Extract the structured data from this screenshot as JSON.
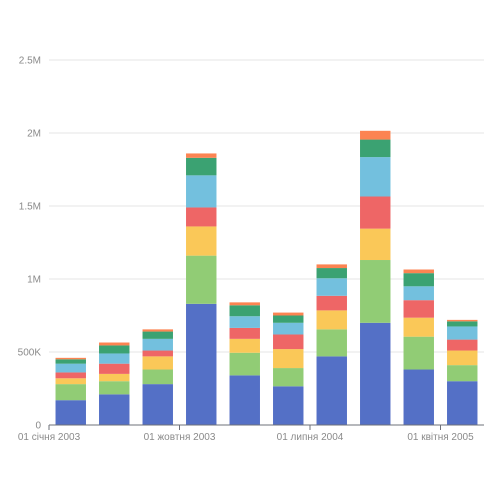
{
  "chart_data": {
    "type": "bar",
    "stacked": true,
    "title": "",
    "xlabel": "",
    "ylabel": "",
    "grid": true,
    "ylim": [
      0,
      2500000
    ],
    "y_ticks": [
      0,
      500000,
      1000000,
      1500000,
      2000000,
      2500000
    ],
    "y_tick_labels": [
      "0",
      "500K",
      "1M",
      "1.5M",
      "2M",
      "2.5M"
    ],
    "x_tick_labels": [
      {
        "label": "01 січня 2003",
        "at_bar": 0
      },
      {
        "label": "01 жовтня 2003",
        "at_bar": 3
      },
      {
        "label": "01 липня 2004",
        "at_bar": 6
      },
      {
        "label": "01 квітня 2005",
        "at_bar": 9
      }
    ],
    "categories": [
      "2003-01",
      "2003-04",
      "2003-07",
      "2003-10",
      "2004-01",
      "2004-04",
      "2004-07",
      "2004-10",
      "2005-01",
      "2005-04"
    ],
    "series": [
      {
        "color": "#5470c6",
        "values": [
          170000,
          210000,
          280000,
          830000,
          340000,
          265000,
          470000,
          700000,
          380000,
          300000
        ]
      },
      {
        "color": "#91cc75",
        "values": [
          110000,
          90000,
          100000,
          330000,
          155000,
          125000,
          185000,
          430000,
          225000,
          110000
        ]
      },
      {
        "color": "#fac858",
        "values": [
          40000,
          50000,
          90000,
          200000,
          95000,
          130000,
          130000,
          215000,
          130000,
          100000
        ]
      },
      {
        "color": "#ee6666",
        "values": [
          40000,
          70000,
          40000,
          130000,
          75000,
          100000,
          100000,
          220000,
          120000,
          75000
        ]
      },
      {
        "color": "#73c0de",
        "values": [
          60000,
          70000,
          80000,
          220000,
          80000,
          80000,
          120000,
          270000,
          95000,
          90000
        ]
      },
      {
        "color": "#3ba272",
        "values": [
          30000,
          55000,
          50000,
          120000,
          75000,
          50000,
          70000,
          120000,
          90000,
          35000
        ]
      },
      {
        "color": "#fc8452",
        "values": [
          10000,
          20000,
          15000,
          30000,
          20000,
          20000,
          25000,
          60000,
          25000,
          10000
        ]
      }
    ]
  }
}
